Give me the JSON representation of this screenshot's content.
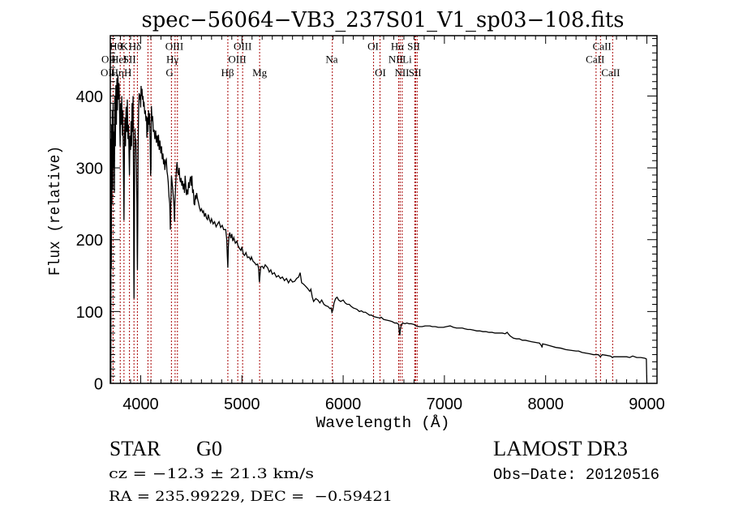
{
  "chart_data": {
    "type": "line",
    "title": "spec−56064−VB3_237S01_V1_sp03−108.fits",
    "xlabel": "Wavelength (Å)",
    "ylabel": "Flux (relative)",
    "xlim": [
      3700,
      9100
    ],
    "ylim": [
      0,
      484
    ],
    "grid": false,
    "legend": "none",
    "x_ticks": [
      4000,
      5000,
      6000,
      7000,
      8000,
      9000
    ],
    "x_tick_labels": [
      "4000",
      "5000",
      "6000",
      "7000",
      "8000",
      "9000"
    ],
    "x_minor_step": 100,
    "y_ticks": [
      0,
      100,
      200,
      300,
      400
    ],
    "y_tick_labels": [
      "0",
      "100",
      "200",
      "300",
      "400"
    ],
    "y_minor_step": 10,
    "line_mark_color": "#b01c1c",
    "series": [
      {
        "name": "spectrum",
        "color": "#000000",
        "x": [
          3705,
          3707,
          3710,
          3713,
          3716,
          3720,
          3724,
          3728,
          3732,
          3736,
          3740,
          3745,
          3750,
          3755,
          3760,
          3765,
          3770,
          3775,
          3780,
          3786,
          3792,
          3797,
          3802,
          3808,
          3813,
          3818,
          3824,
          3830,
          3835,
          3840,
          3845,
          3850,
          3856,
          3862,
          3868,
          3874,
          3880,
          3885,
          3889,
          3894,
          3900,
          3905,
          3910,
          3915,
          3920,
          3925,
          3929,
          3932,
          3934,
          3937,
          3940,
          3944,
          3948,
          3953,
          3958,
          3963,
          3966,
          3968,
          3971,
          3975,
          3980,
          3985,
          3990,
          3995,
          4000,
          4004,
          4008,
          4013,
          4018,
          4023,
          4028,
          4033,
          4040,
          4046,
          4052,
          4058,
          4061,
          4065,
          4072,
          4078,
          4084,
          4088,
          4093,
          4098,
          4102,
          4106,
          4112,
          4118,
          4125,
          4133,
          4140,
          4148,
          4155,
          4163,
          4170,
          4176,
          4183,
          4190,
          4199,
          4206,
          4213,
          4220,
          4226,
          4233,
          4239,
          4246,
          4253,
          4260,
          4266,
          4272,
          4280,
          4287,
          4293,
          4298,
          4304,
          4310,
          4318,
          4325,
          4330,
          4334,
          4338,
          4345,
          4352,
          4359,
          4366,
          4373,
          4380,
          4386,
          4393,
          4399,
          4406,
          4413,
          4420,
          4427,
          4433,
          4439,
          4446,
          4452,
          4460,
          4466,
          4473,
          4480,
          4486,
          4493,
          4500,
          4506,
          4513,
          4520,
          4527,
          4533,
          4540,
          4546,
          4553,
          4560,
          4570,
          4580,
          4590,
          4600,
          4612,
          4620,
          4630,
          4640,
          4650,
          4660,
          4667,
          4680,
          4690,
          4700,
          4715,
          4730,
          4745,
          4760,
          4774,
          4790,
          4805,
          4820,
          4840,
          4850,
          4855,
          4861,
          4866,
          4872,
          4880,
          4890,
          4900,
          4910,
          4920,
          4935,
          4950,
          4960,
          4975,
          4990,
          5000,
          5014,
          5025,
          5040,
          5055,
          5070,
          5085,
          5094,
          5110,
          5125,
          5140,
          5155,
          5165,
          5170,
          5173,
          5178,
          5185,
          5200,
          5215,
          5230,
          5254,
          5270,
          5285,
          5300,
          5320,
          5340,
          5361,
          5380,
          5400,
          5420,
          5440,
          5460,
          5480,
          5500,
          5521,
          5540,
          5560,
          5575,
          5590,
          5610,
          5630,
          5650,
          5670,
          5681,
          5695,
          5708,
          5730,
          5750,
          5770,
          5788,
          5810,
          5830,
          5850,
          5870,
          5881,
          5889,
          5898,
          5910,
          5925,
          5940,
          5955,
          5975,
          6000,
          6020,
          6040,
          6060,
          6080,
          6100,
          6120,
          6136,
          6160,
          6180,
          6200,
          6220,
          6240,
          6260,
          6280,
          6300,
          6330,
          6360,
          6376,
          6400,
          6430,
          6460,
          6483,
          6510,
          6530,
          6548,
          6555,
          6560,
          6565,
          6575,
          6590,
          6610,
          6630,
          6650,
          6670,
          6700,
          6720,
          6750,
          6780,
          6810,
          6840,
          6857,
          6880,
          6910,
          6940,
          6970,
          6990,
          7020,
          7057,
          7090,
          7120,
          7150,
          7177,
          7200,
          7230,
          7257,
          7290,
          7320,
          7350,
          7380,
          7410,
          7440,
          7471,
          7500,
          7540,
          7572,
          7600,
          7620,
          7631,
          7650,
          7680,
          7711,
          7740,
          7770,
          7800,
          7830,
          7860,
          7900,
          7940,
          7960,
          7965,
          7970,
          8000,
          8050,
          8100,
          8150,
          8200,
          8250,
          8300,
          8326,
          8360,
          8400,
          8440,
          8470,
          8499,
          8520,
          8540,
          8560,
          8600,
          8640,
          8660,
          8673,
          8700,
          8750,
          8800,
          8830,
          8860,
          8900,
          8940,
          8980,
          8995,
          9000
        ],
        "y": [
          0,
          340,
          160,
          360,
          250,
          380,
          270,
          390,
          300,
          350,
          265,
          400,
          330,
          415,
          360,
          425,
          380,
          430,
          395,
          418,
          375,
          330,
          390,
          360,
          400,
          345,
          380,
          300,
          227,
          340,
          370,
          330,
          385,
          350,
          395,
          340,
          360,
          320,
          290,
          345,
          325,
          365,
          330,
          390,
          350,
          400,
          300,
          160,
          118,
          180,
          300,
          355,
          330,
          340,
          300,
          250,
          182,
          158,
          220,
          330,
          385,
          404,
          395,
          402,
          384,
          414,
          400,
          410,
          395,
          400,
          385,
          392,
          375,
          380,
          365,
          372,
          342,
          370,
          350,
          380,
          360,
          376,
          340,
          289,
          300,
          386,
          365,
          372,
          350,
          353,
          340,
          352,
          335,
          345,
          330,
          346,
          325,
          338,
          320,
          330,
          312,
          320,
          305,
          312,
          297,
          310,
          312,
          295,
          289,
          280,
          260,
          250,
          214,
          250,
          289,
          280,
          268,
          255,
          245,
          225,
          250,
          275,
          295,
          308,
          295,
          290,
          300,
          285,
          280,
          286,
          275,
          282,
          270,
          278,
          265,
          289,
          275,
          262,
          270,
          263,
          280,
          272,
          283,
          288,
          275,
          289,
          265,
          270,
          250,
          248,
          262,
          256,
          265,
          258,
          252,
          245,
          240,
          243,
          238,
          240,
          232,
          237,
          230,
          228,
          235,
          228,
          224,
          229,
          222,
          225,
          218,
          222,
          225,
          217,
          220,
          214,
          214,
          200,
          180,
          161,
          190,
          205,
          210,
          202,
          208,
          198,
          203,
          195,
          198,
          192,
          188,
          185,
          190,
          180,
          178,
          182,
          175,
          176,
          172,
          176,
          170,
          168,
          165,
          166,
          160,
          145,
          141,
          150,
          162,
          163,
          160,
          165,
          161,
          155,
          158,
          152,
          154,
          148,
          150,
          146,
          148,
          143,
          146,
          140,
          145,
          141,
          142,
          146,
          148,
          154,
          140,
          138,
          135,
          132,
          128,
          131,
          120,
          114,
          118,
          116,
          112,
          116,
          110,
          108,
          107,
          104,
          105,
          99,
          102,
          112,
          118,
          120,
          116,
          114,
          116,
          112,
          110,
          110,
          107,
          105,
          104,
          103,
          100,
          101,
          99,
          99,
          97,
          95,
          95,
          93,
          92,
          91,
          92,
          89,
          88,
          87,
          86,
          84,
          84,
          82,
          70,
          67,
          75,
          82,
          84,
          83,
          84,
          83,
          83,
          82,
          80,
          79,
          79,
          80,
          80,
          80,
          79,
          79,
          78,
          78,
          78,
          79,
          80,
          78,
          77,
          77,
          77,
          76,
          75,
          75,
          74,
          73,
          73,
          72,
          72,
          71,
          71,
          70,
          70,
          70,
          69,
          71,
          69,
          66,
          63,
          62,
          62,
          60,
          60,
          59,
          58,
          57,
          56,
          52,
          50,
          55,
          54,
          52,
          50,
          49,
          47,
          46,
          45,
          45,
          43,
          42,
          41,
          40,
          40,
          40,
          37,
          40,
          39,
          38,
          36,
          37,
          37,
          37,
          37,
          36,
          38,
          36,
          36,
          35,
          34,
          0
        ]
      }
    ],
    "line_marks": [
      {
        "label": "Hθ",
        "wavelength": 3798,
        "row": 1,
        "label_at": 3756
      },
      {
        "label": "K",
        "wavelength": 3934,
        "row": 1,
        "label_at": 3840
      },
      {
        "label": "Hδ",
        "wavelength": 4102,
        "row": 1,
        "label_at": 3944
      },
      {
        "label": "OIII",
        "wavelength": 4363,
        "row": 1,
        "label_at": 4333
      },
      {
        "label": "OIII",
        "wavelength": 5007,
        "row": 1,
        "label_at": 5007
      },
      {
        "label": "OI",
        "wavelength": 6300,
        "row": 1,
        "label_at": 6296
      },
      {
        "label": "Hα",
        "wavelength": 6563,
        "row": 1,
        "label_at": 6536
      },
      {
        "label": "SII",
        "wavelength": 6716,
        "row": 1,
        "label_at": 6697
      },
      {
        "label": "CaII",
        "wavelength": 8542,
        "row": 1,
        "label_at": 8557
      },
      {
        "label": "OII",
        "wavelength": 3727,
        "row": 2,
        "label_at": 3684
      },
      {
        "label": "HeI",
        "wavelength": 3889,
        "row": 2,
        "label_at": 3786
      },
      {
        "label": "SII",
        "wavelength": 4072,
        "row": 2,
        "label_at": 3890
      },
      {
        "label": "Hγ",
        "wavelength": 4340,
        "row": 2,
        "label_at": 4313
      },
      {
        "label": "OIII",
        "wavelength": 4959,
        "row": 2,
        "label_at": 4954
      },
      {
        "label": "Na",
        "wavelength": 5893,
        "row": 2,
        "label_at": 5887
      },
      {
        "label": "NII",
        "wavelength": 6548,
        "row": 2,
        "label_at": 6519
      },
      {
        "label": "Li",
        "wavelength": 6708,
        "row": 2,
        "label_at": 6632
      },
      {
        "label": "CaII",
        "wavelength": 8498,
        "row": 2,
        "label_at": 8489
      },
      {
        "label": "OII",
        "wavelength": 3729,
        "row": 3,
        "label_at": 3676
      },
      {
        "label": "Hη",
        "wavelength": 3835,
        "row": 3,
        "label_at": 3770
      },
      {
        "label": "H",
        "wavelength": 3968,
        "row": 3,
        "label_at": 3874
      },
      {
        "label": "G",
        "wavelength": 4304,
        "row": 3,
        "label_at": 4285
      },
      {
        "label": "Hβ",
        "wavelength": 4861,
        "row": 3,
        "label_at": 4858
      },
      {
        "label": "Mg",
        "wavelength": 5175,
        "row": 3,
        "label_at": 5175
      },
      {
        "label": "OI",
        "wavelength": 6364,
        "row": 3,
        "label_at": 6368
      },
      {
        "label": "NII",
        "wavelength": 6583,
        "row": 3,
        "label_at": 6580
      },
      {
        "label": "SII",
        "wavelength": 6731,
        "row": 3,
        "label_at": 6710
      },
      {
        "label": "CaII",
        "wavelength": 8662,
        "row": 3,
        "label_at": 8643
      }
    ]
  },
  "info": {
    "object_class": "STAR",
    "subclass": "G0",
    "redshift_text": "cz = −12.3 ± 21.3 km/s",
    "coords_text": "RA = 235.99229, DEC =  −0.59421",
    "survey": "LAMOST DR3",
    "obs_date_text": "Obs−Date: 20120516"
  }
}
